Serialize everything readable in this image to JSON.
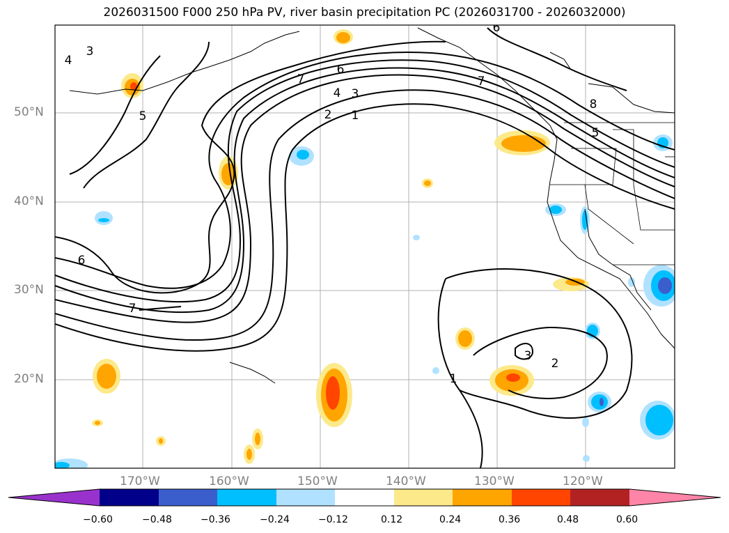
{
  "title": "2026031500 F000 250 hPa PV, river basin precipitation PC (2026031700 - 2026032000)",
  "axes": {
    "lat_labels": [
      "50°N",
      "40°N",
      "30°N",
      "20°N"
    ],
    "lon_labels": [
      "170°W",
      "160°W",
      "150°W",
      "140°W",
      "130°W",
      "120°W"
    ]
  },
  "contour_labels": [
    "3",
    "4",
    "5",
    "6",
    "7",
    "1",
    "2",
    "3",
    "4",
    "6",
    "7",
    "8",
    "5",
    "6",
    "7",
    "3",
    "2",
    "1"
  ],
  "colorbar": {
    "ticks": [
      "−0.60",
      "−0.48",
      "−0.36",
      "−0.24",
      "−0.12",
      "0.12",
      "0.24",
      "0.36",
      "0.48",
      "0.60"
    ],
    "colors": [
      "#9932cc",
      "#00008b",
      "#3a5fcd",
      "#00bfff",
      "#b0e2ff",
      "#ffffff",
      "#fce98a",
      "#ffa500",
      "#ff4500",
      "#b22222",
      "#ff85a8"
    ]
  },
  "colors": {
    "pos_light": "#fce98a",
    "pos_mid": "#ffa500",
    "pos_high": "#ff4500",
    "neg_light": "#b0e2ff",
    "neg_mid": "#00bfff",
    "neg_high": "#3a5fcd",
    "grid": "#b0b0b0"
  }
}
